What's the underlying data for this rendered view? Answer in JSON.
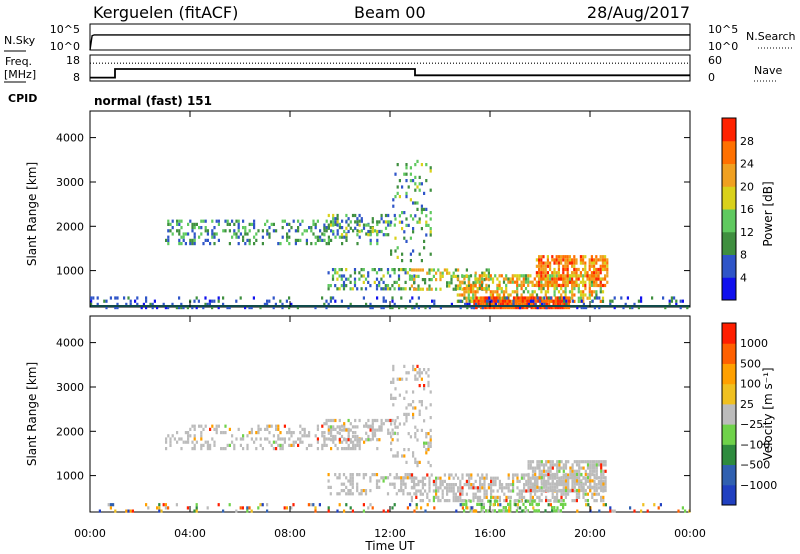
{
  "header": {
    "station": "Kerguelen (fitACF)",
    "beam": "Beam 00",
    "date": "28/Aug/2017"
  },
  "colors": {
    "background": "#ffffff",
    "axis": "#000000",
    "panel_border": "#000000",
    "data_gray": "#b9b9b9"
  },
  "chart_data": [
    {
      "type": "line",
      "name": "noise-panel",
      "left_label": "N.Sky",
      "left_ticks": [
        "10^5",
        "10^0"
      ],
      "right_ticks": [
        "10^5",
        "10^0"
      ],
      "right_label": "N.Search",
      "series": [
        {
          "key": "sky",
          "style": "solid",
          "x": [
            "00:00",
            "00:05",
            "00:10",
            "24:00"
          ],
          "values": [
            0.0,
            0.55,
            0.58,
            0.58
          ]
        },
        {
          "key": "search",
          "style": "dotted",
          "x": [
            "00:00",
            "24:00"
          ],
          "values": [
            0.0,
            0.0
          ]
        }
      ]
    },
    {
      "type": "line",
      "name": "frequency-panel",
      "left_label_lines": [
        "Freq.",
        "[MHz]"
      ],
      "left_ticks": [
        "18",
        "8"
      ],
      "right_ticks": [
        "60",
        "0"
      ],
      "right_label": "Nave",
      "series": [
        {
          "key": "freq",
          "style": "solid",
          "x": [
            "00:00",
            "01:00",
            "01:00",
            "13:00",
            "13:00",
            "24:00"
          ],
          "values": [
            9.3,
            9.3,
            12.6,
            12.6,
            10.2,
            10.2
          ]
        },
        {
          "key": "nave",
          "style": "dotted",
          "x": [
            "00:00",
            "24:00"
          ],
          "values": [
            41,
            41
          ]
        }
      ]
    },
    {
      "type": "heatmap",
      "name": "power-panel",
      "ylabel": "Slant Range [km]",
      "yticks": [
        1000,
        2000,
        3000,
        4000
      ],
      "ylim": [
        180,
        4600
      ],
      "colorbar": {
        "label": "Power [dB]",
        "ticks": [
          "4",
          "8",
          "12",
          "16",
          "20",
          "24",
          "28"
        ],
        "colors": [
          "#1010ee",
          "#2f55c8",
          "#3f8f3f",
          "#5fc95f",
          "#d9d11b",
          "#f0a020",
          "#ff7000",
          "#ff2200"
        ]
      },
      "scatter_regions": [
        {
          "t0": "03:00",
          "t1": "11:30",
          "r0": 1620,
          "r1": 2150,
          "v0": 4,
          "v1": 16,
          "density": 0.3
        },
        {
          "t0": "09:20",
          "t1": "12:10",
          "r0": 1840,
          "r1": 2280,
          "v0": 4,
          "v1": 18,
          "density": 0.34
        },
        {
          "t0": "12:00",
          "t1": "13:40",
          "r0": 1200,
          "r1": 3500,
          "v0": 4,
          "v1": 18,
          "density": 0.18
        },
        {
          "t0": "09:30",
          "t1": "13:00",
          "r0": 560,
          "r1": 1060,
          "v0": 4,
          "v1": 18,
          "density": 0.34
        },
        {
          "t0": "12:50",
          "t1": "16:00",
          "r0": 560,
          "r1": 1050,
          "v0": 8,
          "v1": 24,
          "density": 0.42
        },
        {
          "t0": "14:40",
          "t1": "20:30",
          "r0": 320,
          "r1": 920,
          "v0": 10,
          "v1": 26,
          "density": 0.55
        },
        {
          "t0": "17:50",
          "t1": "20:40",
          "r0": 680,
          "r1": 1350,
          "v0": 18,
          "v1": 30,
          "density": 0.72
        },
        {
          "t0": "15:20",
          "t1": "19:10",
          "r0": 180,
          "r1": 420,
          "v0": 24,
          "v1": 32,
          "density": 0.82
        },
        {
          "t0": "00:00",
          "t1": "24:00",
          "r0": 180,
          "r1": 420,
          "v0": 2,
          "v1": 10,
          "density": 0.2
        }
      ]
    },
    {
      "type": "heatmap",
      "name": "velocity-panel",
      "ylabel": "Slant Range [km]",
      "yticks": [
        1000,
        2000,
        3000,
        4000
      ],
      "ylim": [
        180,
        4600
      ],
      "xlabel": "Time UT",
      "xticks": [
        "00:00",
        "04:00",
        "08:00",
        "12:00",
        "16:00",
        "20:00",
        "00:00"
      ],
      "colorbar": {
        "label": "Velocity [m s⁻¹]",
        "ticks": [
          "1000",
          "500",
          "100",
          "25",
          "−25",
          "−100",
          "−500",
          "−1000"
        ],
        "colors": [
          "#2040c0",
          "#3060b0",
          "#2e8b3e",
          "#6fd24a",
          "#bcbcbc",
          "#f0c020",
          "#ffa000",
          "#ff6000",
          "#ff1e00"
        ]
      },
      "scatter_regions": [
        {
          "t0": "03:00",
          "t1": "11:30",
          "r0": 1620,
          "r1": 2150,
          "mode": "gray",
          "density": 0.3
        },
        {
          "t0": "09:20",
          "t1": "12:10",
          "r0": 1840,
          "r1": 2280,
          "mode": "gray",
          "density": 0.34
        },
        {
          "t0": "12:00",
          "t1": "13:40",
          "r0": 1200,
          "r1": 3500,
          "mode": "gray",
          "density": 0.2
        },
        {
          "t0": "09:30",
          "t1": "13:00",
          "r0": 560,
          "r1": 1060,
          "mode": "gray",
          "density": 0.34
        },
        {
          "t0": "12:50",
          "t1": "20:30",
          "r0": 420,
          "r1": 1050,
          "mode": "gray",
          "density": 0.55
        },
        {
          "t0": "17:30",
          "t1": "20:40",
          "r0": 650,
          "r1": 1350,
          "mode": "gray",
          "density": 0.7
        },
        {
          "t0": "14:50",
          "t1": "19:00",
          "r0": 200,
          "r1": 460,
          "mode": "green",
          "density": 0.45
        },
        {
          "t0": "00:00",
          "t1": "24:00",
          "r0": 180,
          "r1": 380,
          "mode": "mixed",
          "density": 0.15
        }
      ]
    }
  ],
  "cpid": {
    "label": "CPID",
    "program": "normal (fast) 151"
  }
}
